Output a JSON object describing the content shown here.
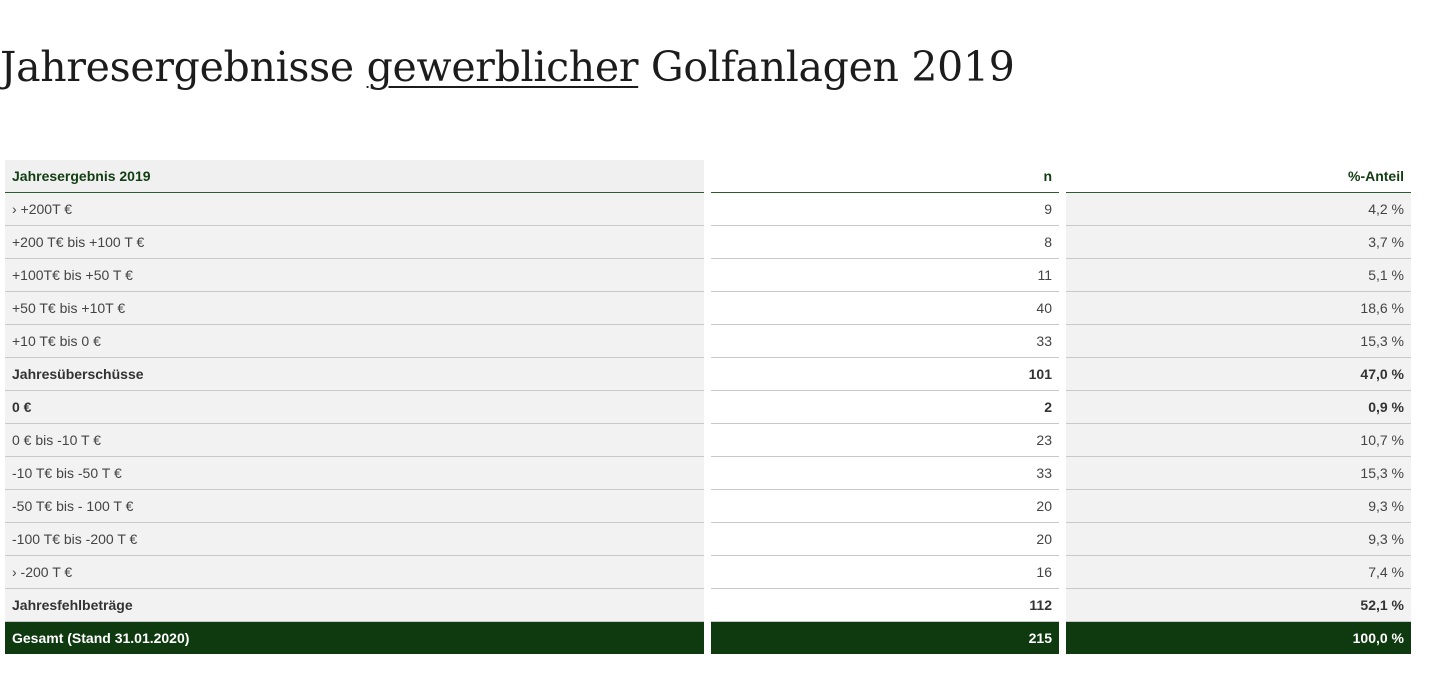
{
  "title": {
    "part1": "Jahresergebnisse ",
    "underlined": "gewerblicher",
    "part2": " Golfanlagen 2019"
  },
  "table": {
    "headers": {
      "label": "Jahresergebnis 2019",
      "n": "n",
      "pct": "%-Anteil"
    },
    "rows": [
      {
        "label": "› +200T €",
        "n": "9",
        "pct": "4,2 %",
        "style": "normal"
      },
      {
        "label": "+200 T€ bis +100 T €",
        "n": "8",
        "pct": "3,7 %",
        "style": "normal"
      },
      {
        "label": "+100T€ bis +50 T €",
        "n": "11",
        "pct": "5,1 %",
        "style": "normal"
      },
      {
        "label": "+50 T€ bis +10T €",
        "n": "40",
        "pct": "18,6 %",
        "style": "normal"
      },
      {
        "label": "+10 T€ bis 0 €",
        "n": "33",
        "pct": "15,3 %",
        "style": "normal"
      },
      {
        "label": "Jahresüberschüsse",
        "n": "101",
        "pct": "47,0 %",
        "style": "bold"
      },
      {
        "label": "0 €",
        "n": "2",
        "pct": "0,9 %",
        "style": "bold"
      },
      {
        "label": "0 € bis -10 T €",
        "n": "23",
        "pct": "10,7 %",
        "style": "normal"
      },
      {
        "label": "-10 T€ bis -50 T €",
        "n": "33",
        "pct": "15,3 %",
        "style": "normal"
      },
      {
        "label": "-50 T€ bis - 100 T €",
        "n": "20",
        "pct": "9,3 %",
        "style": "normal"
      },
      {
        "label": "-100 T€ bis -200 T €",
        "n": "20",
        "pct": "9,3 %",
        "style": "normal"
      },
      {
        "label": "› -200 T €",
        "n": "16",
        "pct": "7,4 %",
        "style": "normal"
      },
      {
        "label": "Jahresfehlbeträge",
        "n": "112",
        "pct": "52,1 %",
        "style": "bold"
      },
      {
        "label": "Gesamt (Stand 31.01.2020)",
        "n": "215",
        "pct": "100,0 %",
        "style": "total"
      }
    ]
  },
  "colors": {
    "header_text": "#123d12",
    "total_background": "#0f3a10",
    "total_text": "#ffffff",
    "row_background": "#f2f2f2"
  }
}
